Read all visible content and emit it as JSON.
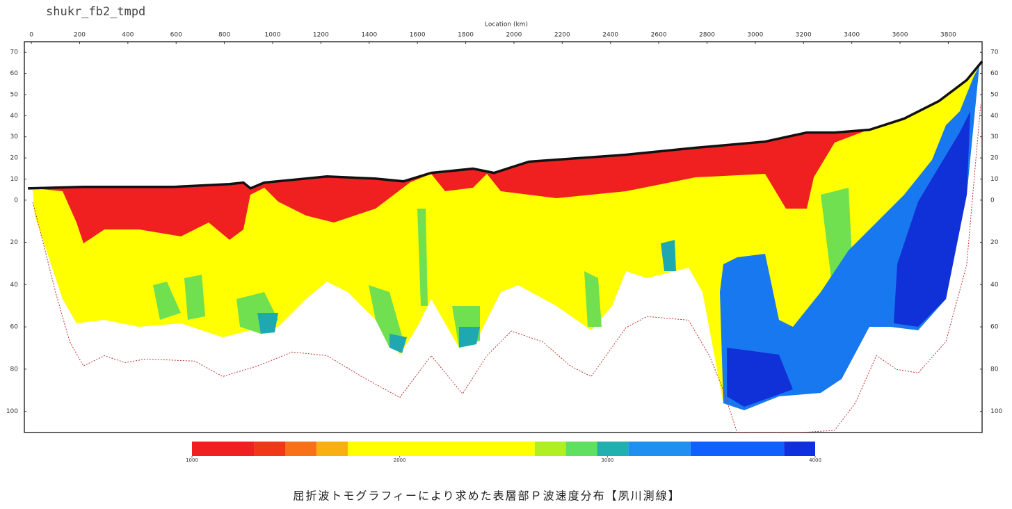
{
  "chart_data": {
    "type": "tomography",
    "title": "shukr_fb2_tmpd",
    "xlabel": "Location (km)",
    "caption": "屈折波トモグラフィーにより求めた表層部Ｐ波速度分布【夙川測線】",
    "xlim": [
      -29,
      3940
    ],
    "ylim": [
      -110,
      75
    ],
    "xticks": [
      0,
      200,
      400,
      600,
      800,
      1000,
      1200,
      1400,
      1600,
      1800,
      2000,
      2200,
      2400,
      2600,
      2800,
      3000,
      3200,
      3400,
      3600,
      3800
    ],
    "yticks": [
      70,
      60,
      50,
      40,
      30,
      20,
      10,
      0,
      {
        "value": -20,
        "label": "20"
      },
      {
        "value": -40,
        "label": "40"
      },
      {
        "value": -60,
        "label": "60"
      },
      {
        "value": -80,
        "label": "80"
      },
      {
        "value": -100,
        "label": "100"
      }
    ],
    "series": [
      {
        "name": "surface",
        "color": "#111111",
        "x": [
          -14,
          216,
          591,
          821,
          879,
          908,
          965,
          1225,
          1427,
          1542,
          1657,
          1830,
          1917,
          2061,
          2464,
          2752,
          3040,
          3213,
          3329,
          3473,
          3617,
          3761,
          3876,
          3940
        ],
        "values": [
          5.6,
          6.3,
          6.3,
          7.6,
          8.3,
          5.6,
          8.3,
          11.2,
          10.2,
          8.9,
          12.9,
          14.9,
          12.9,
          18.2,
          21.5,
          24.8,
          27.7,
          32,
          32,
          33.3,
          38.6,
          46.9,
          56.8,
          65.7
        ]
      },
      {
        "name": "ray coverage",
        "color": "#c03030",
        "x": [
          6,
          43,
          101,
          159,
          216,
          303,
          389,
          476,
          677,
          793,
          937,
          1081,
          1225,
          1369,
          1527,
          1657,
          1787,
          1888,
          1989,
          2118,
          2234,
          2320,
          2464,
          2551,
          2723,
          2810,
          2868,
          2925,
          3069,
          3185,
          3329,
          3415,
          3502,
          3588,
          3675,
          3790,
          3876,
          3934
        ],
        "values": [
          -1,
          -17.5,
          -43.9,
          -67,
          -78.5,
          -73.6,
          -76.9,
          -75.2,
          -76.2,
          -83.5,
          -78.5,
          -71.9,
          -73.6,
          -83.5,
          -93.4,
          -73.6,
          -91.7,
          -73.6,
          -62,
          -67,
          -78.5,
          -83.5,
          -60.4,
          -55.1,
          -56.8,
          -73.6,
          -90.1,
          -110,
          -110,
          -110,
          -109,
          -96,
          -73.6,
          -80.2,
          -81.8,
          -67,
          -30.7,
          45.2
        ]
      }
    ],
    "colorbar": {
      "range": [
        1000,
        4000
      ],
      "edges": [
        1000,
        1300,
        1450,
        1600,
        1750,
        2650,
        2800,
        2950,
        3100,
        3400,
        3850,
        4000
      ],
      "colors": [
        "#f02020",
        "#f03818",
        "#f87018",
        "#f8b010",
        "#ffff00",
        "#b0f020",
        "#60e060",
        "#20b0b0",
        "#2090f0",
        "#1060ff",
        "#1030e0"
      ],
      "ticks": [
        1000,
        2000,
        3000,
        4000
      ]
    }
  }
}
